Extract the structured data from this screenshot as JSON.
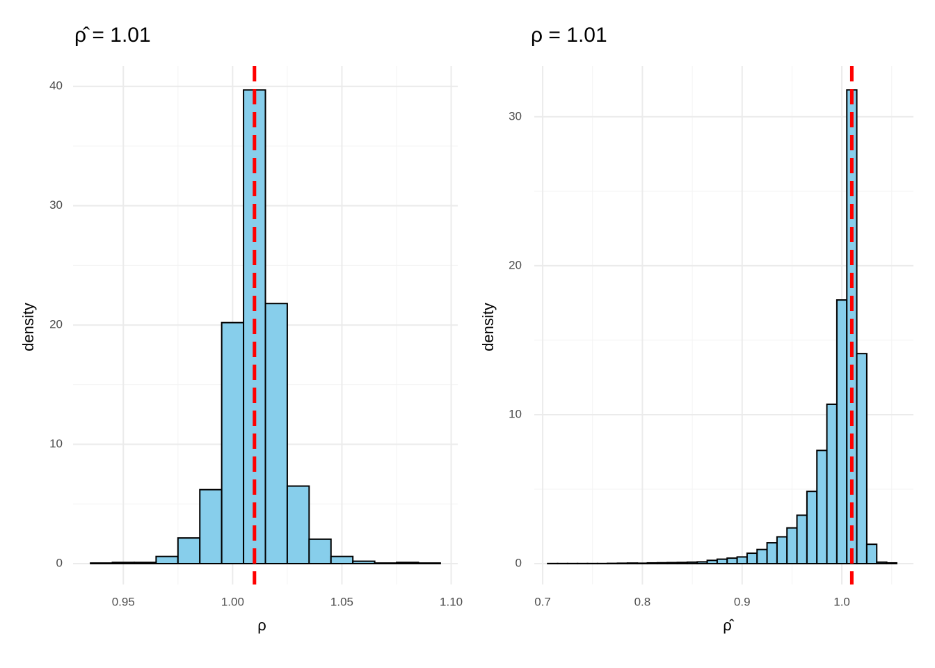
{
  "chart_data": [
    {
      "type": "histogram",
      "title": "ρ̂ = 1.01",
      "xlabel": "ρ",
      "ylabel": "density",
      "bins": [
        0.935,
        0.945,
        0.955,
        0.965,
        0.975,
        0.985,
        0.995,
        1.005,
        1.015,
        1.025,
        1.035,
        1.045,
        1.055,
        1.065,
        1.075,
        1.085,
        1.095
      ],
      "values": [
        0.05,
        0.1,
        0.1,
        0.6,
        2.15,
        6.2,
        20.2,
        39.7,
        21.8,
        6.5,
        2.05,
        0.6,
        0.2,
        0.05,
        0.1,
        0.05
      ],
      "color": "#87ceeb",
      "edgecolor": "#000000",
      "xlim": [
        0.927,
        1.103
      ],
      "ylim": [
        -1.75,
        41.7
      ],
      "xticks": [
        0.95,
        {
          "value": 1.0,
          "label": "1.00"
        },
        1.05,
        {
          "value": 1.1,
          "label": "1.10"
        }
      ],
      "yticks": [
        0,
        10,
        20,
        30,
        40
      ],
      "grid": true,
      "vline": {
        "value": 1.01,
        "color": "#ff0000",
        "style": "dashed"
      }
    },
    {
      "type": "histogram",
      "title": "ρ = 1.01",
      "xlabel": "ρ̂",
      "ylabel": "density",
      "bins": [
        0.705,
        0.715,
        0.725,
        0.735,
        0.745,
        0.755,
        0.765,
        0.775,
        0.785,
        0.795,
        0.805,
        0.815,
        0.825,
        0.835,
        0.845,
        0.855,
        0.865,
        0.875,
        0.885,
        0.895,
        0.905,
        0.915,
        0.925,
        0.935,
        0.945,
        0.955,
        0.965,
        0.975,
        0.985,
        0.995,
        1.005,
        1.015,
        1.025,
        1.035,
        1.045,
        1.055
      ],
      "values": [
        0.01,
        0.01,
        0.01,
        0.01,
        0.01,
        0.01,
        0.02,
        0.03,
        0.04,
        0.03,
        0.05,
        0.06,
        0.07,
        0.08,
        0.1,
        0.12,
        0.22,
        0.3,
        0.37,
        0.45,
        0.7,
        0.95,
        1.4,
        1.8,
        2.4,
        3.25,
        4.85,
        7.6,
        10.7,
        17.7,
        31.8,
        14.1,
        1.3,
        0.1,
        0.05
      ],
      "color": "#87ceeb",
      "edgecolor": "#000000",
      "xlim": [
        0.6916,
        1.0718
      ],
      "ylim": [
        -1.4,
        33.4
      ],
      "xticks": [
        0.7,
        0.8,
        0.9,
        {
          "value": 1.0,
          "label": "1.0"
        }
      ],
      "yticks": [
        0,
        10,
        20,
        30
      ],
      "grid": true,
      "vline": {
        "value": 1.01,
        "color": "#ff0000",
        "style": "dashed"
      }
    }
  ]
}
